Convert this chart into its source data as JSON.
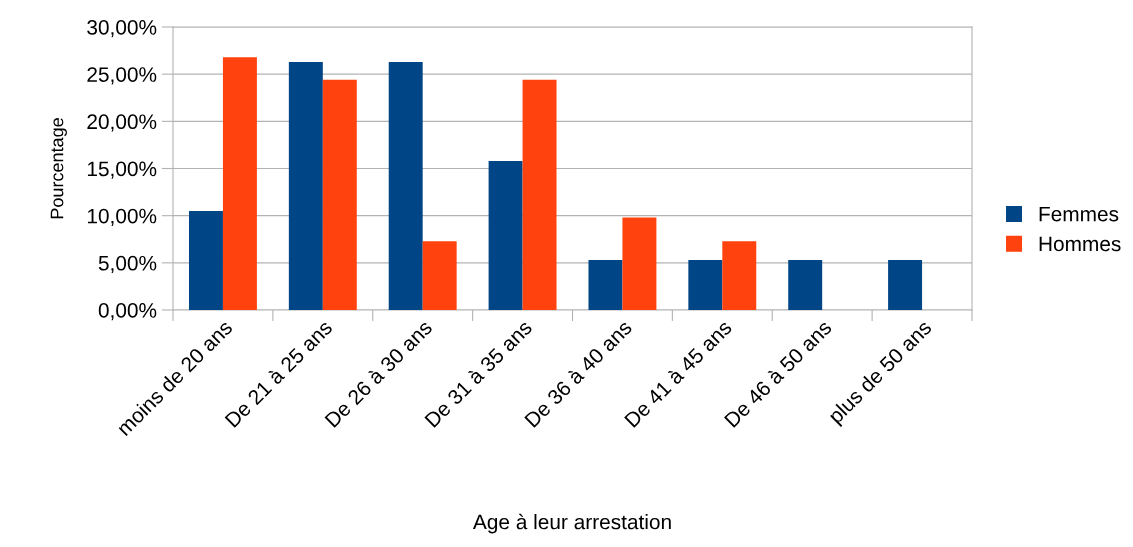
{
  "chart_data": {
    "type": "bar",
    "xlabel": "Age à leur arrestation",
    "ylabel": "Pourcentage",
    "categories": [
      "moins de 20 ans",
      "De 21 à 25 ans",
      "De 26 à 30 ans",
      "De 31 à 35 ans",
      "De 36 à 40 ans",
      "De 41 à 45 ans",
      "De 46 à 50 ans",
      "plus de 50 ans"
    ],
    "series": [
      {
        "name": "Femmes",
        "color": "#004586",
        "values": [
          10.5,
          26.3,
          26.3,
          15.8,
          5.3,
          5.3,
          5.3,
          5.3
        ]
      },
      {
        "name": "Hommes",
        "color": "#ff420e",
        "values": [
          26.8,
          24.4,
          7.3,
          24.4,
          9.8,
          7.3,
          0,
          0
        ]
      }
    ],
    "ylim": [
      0,
      30
    ],
    "yticks": [
      {
        "value": 0,
        "label": "0,00%"
      },
      {
        "value": 5,
        "label": "5,00%"
      },
      {
        "value": 10,
        "label": "10,00%"
      },
      {
        "value": 15,
        "label": "15,00%"
      },
      {
        "value": 20,
        "label": "20,00%"
      },
      {
        "value": 25,
        "label": "25,00%"
      },
      {
        "value": 30,
        "label": "30,00%"
      }
    ],
    "grid": "y",
    "legend": "right"
  }
}
